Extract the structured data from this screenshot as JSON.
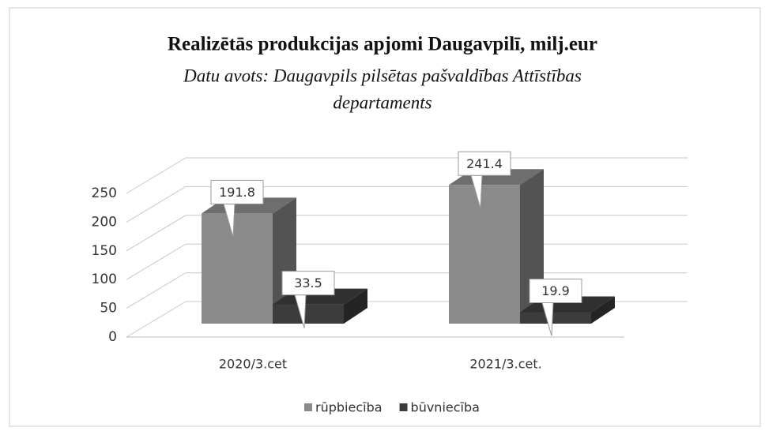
{
  "chart_data": {
    "type": "bar3d",
    "title": "Realizētās produkcijas apjomi Daugavpilī, milj.eur",
    "subtitle_lines": [
      "Datu avots: Daugavpils pilsētas pašvaldības Attīstības",
      "departaments"
    ],
    "categories": [
      "2020/3.cet",
      "2021/3.cet."
    ],
    "series": [
      {
        "name": "rūpbiecība",
        "color": "#8a8a8a",
        "values": [
          191.8,
          241.4
        ]
      },
      {
        "name": "būvniecība",
        "color": "#3c3c3c",
        "values": [
          33.5,
          19.9
        ]
      }
    ],
    "ylim": [
      0,
      250
    ],
    "yticks": [
      0,
      50,
      100,
      150,
      200,
      250
    ],
    "grid": true,
    "legend": "bottom"
  }
}
